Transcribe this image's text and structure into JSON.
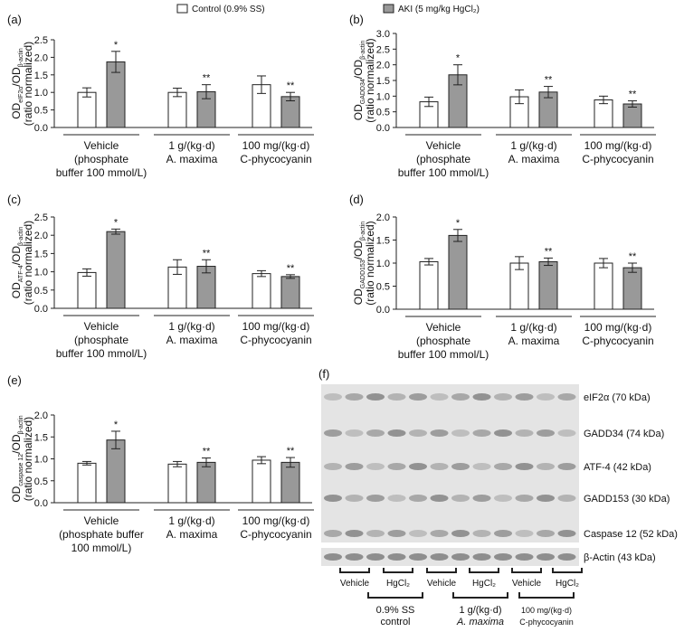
{
  "chart_data": [
    {
      "type": "bar",
      "label": "(a)",
      "ylabel": [
        "OD",
        "eIF2α",
        "/OD",
        "β-actin"
      ],
      "ylabel2": "(ratio normalized)",
      "categories": [
        [
          "Vehicle",
          "(phosphate",
          "buffer 100 mmol/L)"
        ],
        [
          "1 g/(kg·d)",
          "A. maxima"
        ],
        [
          "100 mg/(kg·d)",
          "C-phycocyanin"
        ]
      ],
      "series": [
        {
          "name": "Control (0.9% SS)",
          "color": "#ffffff",
          "values": [
            1.0,
            1.0,
            1.22
          ],
          "errors": [
            0.13,
            0.12,
            0.25
          ]
        },
        {
          "name": "AKI (5 mg/kg HgCl₂)",
          "color": "#999999",
          "values": [
            1.87,
            1.02,
            0.88
          ],
          "errors": [
            0.3,
            0.2,
            0.12
          ],
          "stars": [
            "*",
            "**",
            "**"
          ]
        }
      ],
      "ylim": [
        0,
        2.5
      ],
      "yticks": [
        {
          "value": 0,
          "label": "0.0"
        },
        0.5,
        {
          "value": 1,
          "label": "1.0"
        },
        1.5,
        {
          "value": 2,
          "label": "2.0"
        },
        2.5
      ]
    },
    {
      "type": "bar",
      "label": "(b)",
      "ylabel": [
        "OD",
        "GADD34",
        "/OD",
        "β-actin"
      ],
      "ylabel2": "(ratio normalized)",
      "categories": [
        [
          "Vehicle",
          "(phosphate",
          "buffer 100 mmol/L)"
        ],
        [
          "1 g/(kg·d)",
          "A. maxima"
        ],
        [
          "100 mg/(kg·d)",
          "C-phycocyanin"
        ]
      ],
      "series": [
        {
          "name": "Control (0.9% SS)",
          "color": "#ffffff",
          "values": [
            0.82,
            0.98,
            0.88
          ],
          "errors": [
            0.15,
            0.22,
            0.12
          ]
        },
        {
          "name": "AKI (5 mg/kg HgCl₂)",
          "color": "#999999",
          "values": [
            1.68,
            1.13,
            0.75
          ],
          "errors": [
            0.32,
            0.18,
            0.1
          ],
          "stars": [
            "*",
            "**",
            "**"
          ]
        }
      ],
      "ylim": [
        0,
        3
      ],
      "yticks": [
        {
          "value": 0,
          "label": "0.0"
        },
        0.5,
        {
          "value": 1,
          "label": "1.0"
        },
        1.5,
        {
          "value": 2,
          "label": "2.0"
        },
        2.5,
        {
          "value": 3,
          "label": "3.0"
        }
      ]
    },
    {
      "type": "bar",
      "label": "(c)",
      "ylabel": [
        "OD",
        "ATF-4",
        "/OD",
        "β-actin"
      ],
      "ylabel2": "(ratio normalized)",
      "categories": [
        [
          "Vehicle",
          "(phosphate",
          "buffer 100 mmol/L)"
        ],
        [
          "1 g/(kg·d)",
          "A. maxima"
        ],
        [
          "100 mg/(kg·d)",
          "C-phycocyanin"
        ]
      ],
      "series": [
        {
          "name": "Control (0.9% SS)",
          "color": "#ffffff",
          "values": [
            0.98,
            1.13,
            0.95
          ],
          "errors": [
            0.1,
            0.2,
            0.08
          ]
        },
        {
          "name": "AKI (5 mg/kg HgCl₂)",
          "color": "#999999",
          "values": [
            2.1,
            1.15,
            0.87
          ],
          "errors": [
            0.07,
            0.18,
            0.05
          ],
          "stars": [
            "*",
            "**",
            "**"
          ]
        }
      ],
      "ylim": [
        0,
        2.5
      ],
      "yticks": [
        {
          "value": 0,
          "label": "0.0"
        },
        0.5,
        {
          "value": 1,
          "label": "1.0"
        },
        1.5,
        {
          "value": 2,
          "label": "2.0"
        },
        2.5
      ]
    },
    {
      "type": "bar",
      "label": "(d)",
      "ylabel": [
        "OD",
        "GADD153",
        "/OD",
        "β-actin"
      ],
      "ylabel2": "(ratio normalized)",
      "categories": [
        [
          "Vehicle",
          "(phosphate",
          "buffer 100 mmol/L)"
        ],
        [
          "1 g/(kg·d)",
          "A. maxima"
        ],
        [
          "100 mg/(kg·d)",
          "C-phycocyanin"
        ]
      ],
      "series": [
        {
          "name": "Control (0.9% SS)",
          "color": "#ffffff",
          "values": [
            1.03,
            1.0,
            1.0
          ],
          "errors": [
            0.07,
            0.14,
            0.1
          ]
        },
        {
          "name": "AKI (5 mg/kg HgCl₂)",
          "color": "#999999",
          "values": [
            1.6,
            1.03,
            0.9
          ],
          "errors": [
            0.13,
            0.08,
            0.1
          ],
          "stars": [
            "*",
            "**",
            "**"
          ]
        }
      ],
      "ylim": [
        0,
        2
      ],
      "yticks": [
        {
          "value": 0,
          "label": "0.0"
        },
        0.5,
        {
          "value": 1,
          "label": "1.0"
        },
        1.5,
        {
          "value": 2,
          "label": "2.0"
        }
      ]
    },
    {
      "type": "bar",
      "label": "(e)",
      "ylabel": [
        "OD",
        "caspase 12",
        "/OD",
        "β-actin"
      ],
      "ylabel2": "(ratio normalized)",
      "categories": [
        [
          "Vehicle",
          "(phosphate buffer",
          "100 mmol/L)"
        ],
        [
          "1 g/(kg·d)",
          "A. maxima"
        ],
        [
          "100 mg/(kg·d)",
          "C-phycocyanin"
        ]
      ],
      "series": [
        {
          "name": "Control (0.9% SS)",
          "color": "#ffffff",
          "values": [
            0.9,
            0.88,
            0.97
          ],
          "errors": [
            0.04,
            0.06,
            0.08
          ]
        },
        {
          "name": "AKI (5 mg/kg HgCl₂)",
          "color": "#999999",
          "values": [
            1.43,
            0.92,
            0.92
          ],
          "errors": [
            0.2,
            0.1,
            0.11
          ],
          "stars": [
            "*",
            "**",
            "**"
          ]
        }
      ],
      "ylim": [
        0,
        2
      ],
      "yticks": [
        {
          "value": 0,
          "label": "0.0"
        },
        0.5,
        {
          "value": 1,
          "label": "1.0"
        },
        1.5,
        {
          "value": 2,
          "label": "2.0"
        }
      ]
    }
  ],
  "blot": {
    "label": "(f)",
    "bands": [
      "eIF2α (70 kDa)",
      "GADD34 (74 kDa)",
      "ATF-4 (42 kDa)",
      "GADD153 (30 kDa)",
      "Caspase 12 (52 kDa)"
    ],
    "control_band": "β-Actin (43 kDa)",
    "lanes": [
      "Vehicle",
      "HgCl₂",
      "Vehicle",
      "HgCl₂",
      "Vehicle",
      "HgCl₂"
    ],
    "groups": [
      [
        "0.9% SS",
        "control"
      ],
      [
        "1 g/(kg·d)",
        "A. maxima"
      ],
      [
        "100 mg/(kg·d)",
        "C-phycocyanin"
      ]
    ]
  }
}
